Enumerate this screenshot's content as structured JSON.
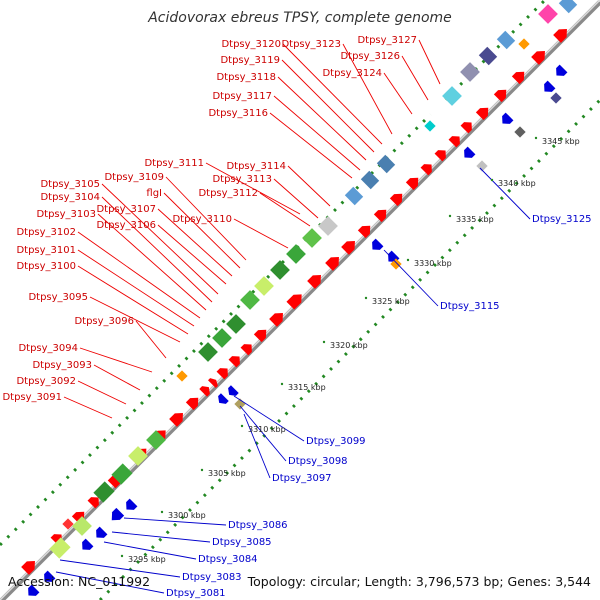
{
  "title": "Acidovorax ebreus TPSY, complete genome",
  "footer": {
    "accession": "Accession: NC_011992",
    "info": "Topology: circular; Length: 3,796,573 bp; Genes: 3,544"
  },
  "colors": {
    "forward_gene": "#ff0000",
    "reverse_gene": "#0000dd",
    "forward_label": "#cc0000",
    "reverse_label": "#0000cc",
    "backbone": "#9a9a9a",
    "dots": "#228822"
  },
  "ticks": [
    "3295 kbp",
    "3300 kbp",
    "3305 kbp",
    "3310 kbp",
    "3315 kbp",
    "3320 kbp",
    "3325 kbp",
    "3330 kbp",
    "3335 kbp",
    "3340 kbp",
    "3345 kbp"
  ],
  "forward_labels": [
    "Dtpsy_3091",
    "Dtpsy_3092",
    "Dtpsy_3093",
    "Dtpsy_3094",
    "Dtpsy_3096",
    "Dtpsy_3095",
    "Dtpsy_3100",
    "Dtpsy_3101",
    "Dtpsy_3102",
    "Dtpsy_3103",
    "Dtpsy_3104",
    "Dtpsy_3105",
    "Dtpsy_3106",
    "Dtpsy_3107",
    "flgI",
    "Dtpsy_3109",
    "Dtpsy_3111",
    "Dtpsy_3110",
    "Dtpsy_3112",
    "Dtpsy_3113",
    "Dtpsy_3114",
    "Dtpsy_3116",
    "Dtpsy_3117",
    "Dtpsy_3118",
    "Dtpsy_3119",
    "Dtpsy_3120",
    "Dtpsy_3123",
    "Dtpsy_3124",
    "Dtpsy_3126",
    "Dtpsy_3127"
  ],
  "reverse_labels": [
    "Dtpsy_3081",
    "Dtpsy_3083",
    "Dtpsy_3084",
    "Dtpsy_3085",
    "Dtpsy_3086",
    "Dtpsy_3097",
    "Dtpsy_3098",
    "Dtpsy_3099",
    "Dtpsy_3115",
    "Dtpsy_3125"
  ]
}
